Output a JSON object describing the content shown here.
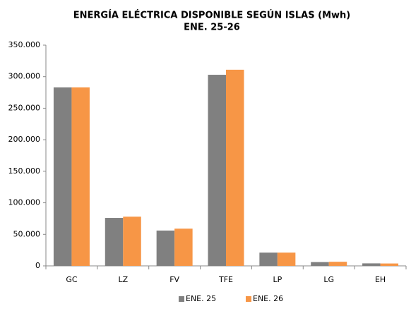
{
  "chart_data": {
    "type": "bar",
    "title": "ENERGÍA ELÉCTRICA DISPONIBLE SEGÚN ISLAS (Mwh)",
    "subtitle": "ENE. 25-26",
    "categories": [
      "GC",
      "LZ",
      "FV",
      "TFE",
      "LP",
      "LG",
      "EH"
    ],
    "series": [
      {
        "name": "ENE. 25",
        "color": "#808080",
        "values": [
          283000,
          76000,
          56000,
          303000,
          21000,
          6000,
          4000
        ]
      },
      {
        "name": "ENE. 26",
        "color": "#f79646",
        "values": [
          283000,
          78000,
          59000,
          311000,
          21000,
          6500,
          3800
        ]
      }
    ],
    "ylim": [
      0,
      350000
    ],
    "yticks": [
      0,
      {
        "value": 50000,
        "label": "50.000"
      },
      {
        "value": 100000,
        "label": "100.000"
      },
      {
        "value": 150000,
        "label": "150.000"
      },
      {
        "value": 200000,
        "label": "200.000"
      },
      {
        "value": 250000,
        "label": "250.000"
      },
      {
        "value": 300000,
        "label": "300.000"
      },
      {
        "value": 350000,
        "label": "350.000"
      }
    ],
    "grid": false,
    "legend": "bottom"
  }
}
